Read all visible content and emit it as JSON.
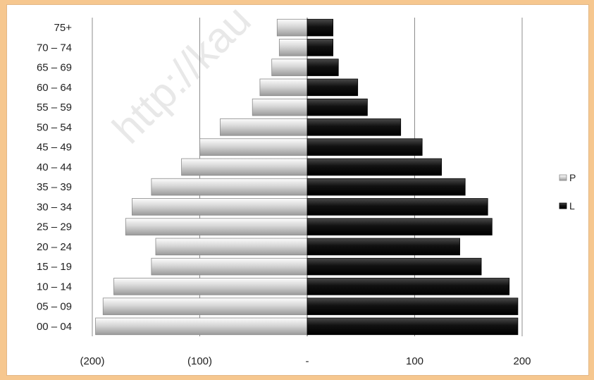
{
  "watermark": "http://kau",
  "chart_data": {
    "type": "bar",
    "orientation": "horizontal",
    "layout": "population-pyramid",
    "categories": [
      "00-04",
      "05-09",
      "10-14",
      "15-19",
      "20-24",
      "25-29",
      "30-34",
      "35-39",
      "40-44",
      "45-49",
      "50-54",
      "55-59",
      "60-64",
      "65-69",
      "70-74",
      "75+"
    ],
    "category_labels": [
      "00 – 04",
      "05 – 09",
      "10 – 14",
      "15 – 19",
      "20 – 24",
      "25 – 29",
      "30 – 34",
      "35 – 39",
      "40 – 44",
      "45 – 49",
      "50 – 54",
      "55 – 59",
      "60 – 64",
      "65 – 69",
      "70 – 74",
      "75+"
    ],
    "series": [
      {
        "name": "P",
        "color": "#d9d9d9",
        "values": [
          -197,
          -190,
          -180,
          -145,
          -141,
          -169,
          -163,
          -145,
          -117,
          -100,
          -81,
          -51,
          -44,
          -33,
          -26,
          -28
        ]
      },
      {
        "name": "L",
        "color": "#111111",
        "values": [
          196,
          196,
          188,
          162,
          142,
          172,
          168,
          147,
          125,
          107,
          87,
          56,
          47,
          29,
          24,
          24
        ]
      }
    ],
    "xlim": [
      -200,
      200
    ],
    "x_ticks": [
      -200,
      -100,
      0,
      100,
      200
    ],
    "x_tick_labels": [
      "(200)",
      "(100)",
      "-",
      "100",
      "200"
    ],
    "grid": "vertical",
    "legend_position": "right",
    "title": "",
    "xlabel": "",
    "ylabel": ""
  }
}
